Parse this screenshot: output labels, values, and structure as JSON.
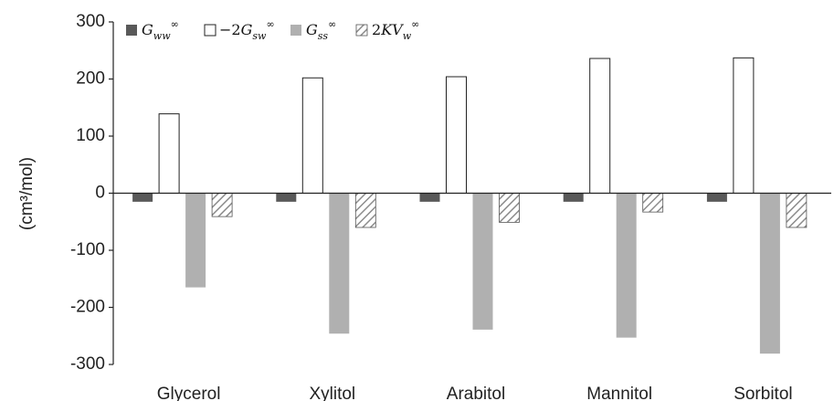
{
  "chart_data": {
    "type": "bar",
    "ylabel": "(cm³/mol)",
    "ylim": [
      -300,
      300
    ],
    "yticks": [
      300,
      200,
      100,
      0,
      -100,
      -200,
      -300
    ],
    "categories": [
      "Glycerol",
      "Xylitol",
      "Arabitol",
      "Mannitol",
      "Sorbitol"
    ],
    "legend_position": "top-left",
    "series": [
      {
        "name": "G_ww^∞",
        "color": "#595959",
        "pattern": "solid",
        "values": [
          -15,
          -15,
          -15,
          -15,
          -15
        ]
      },
      {
        "name": "−2G_sw^∞",
        "color": "#ffffff",
        "pattern": "outline",
        "values": [
          139,
          202,
          204,
          236,
          237
        ]
      },
      {
        "name": "G_ss^∞",
        "color": "#b0b0b0",
        "pattern": "solid",
        "values": [
          -165,
          -246,
          -239,
          -253,
          -281
        ]
      },
      {
        "name": "2KV_w^∞",
        "color": "#d9d9d9",
        "pattern": "hatch",
        "values": [
          -41,
          -60,
          -51,
          -33,
          -60
        ]
      }
    ]
  }
}
